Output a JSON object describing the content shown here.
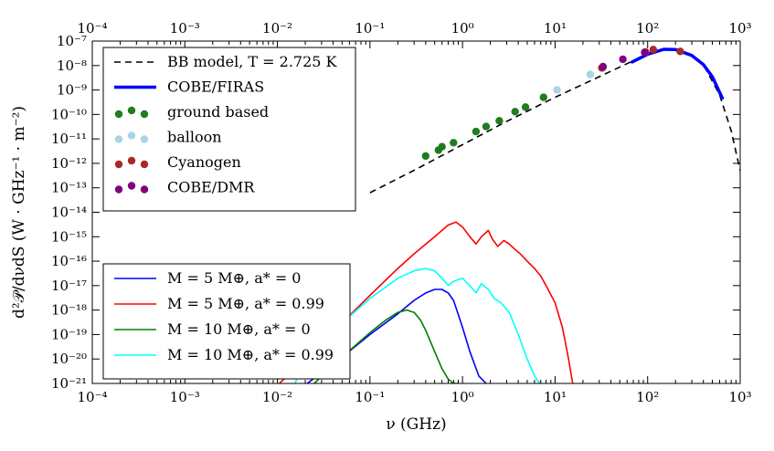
{
  "chart_data": {
    "type": "line",
    "xscale": "log",
    "yscale": "log",
    "xlim": [
      0.0001,
      1000
    ],
    "ylim": [
      1e-21,
      1e-07
    ],
    "xlabel": "ν (GHz)",
    "ylabel": "d²𝒫/dνdS (W · GHz⁻¹ · m⁻²)",
    "x_tick_labels": [
      "10⁻⁴",
      "10⁻³",
      "10⁻²",
      "10⁻¹",
      "10⁰",
      "10¹",
      "10²",
      "10³"
    ],
    "y_tick_labels": [
      "10⁻²¹",
      "10⁻²⁰",
      "10⁻¹⁹",
      "10⁻¹⁸",
      "10⁻¹⁷",
      "10⁻¹⁶",
      "10⁻¹⁵",
      "10⁻¹⁴",
      "10⁻¹³",
      "10⁻¹²",
      "10⁻¹¹",
      "10⁻¹⁰",
      "10⁻⁹",
      "10⁻⁸",
      "10⁻⁷"
    ],
    "legend_upper": {
      "placement": "top-left",
      "entries": [
        {
          "label": "BB model, T = 2.725 K",
          "style": "dashed",
          "color": "#000000"
        },
        {
          "label": "COBE/FIRAS",
          "style": "line",
          "color": "#0000ff"
        },
        {
          "label": "ground based",
          "style": "markers",
          "color": "#1e7d1e"
        },
        {
          "label": "balloon",
          "style": "markers",
          "color": "#a8d4e6"
        },
        {
          "label": "Cyanogen",
          "style": "markers",
          "color": "#a52a2a"
        },
        {
          "label": "COBE/DMR",
          "style": "markers",
          "color": "#800080"
        }
      ]
    },
    "legend_lower": {
      "placement": "bottom-left",
      "entries": [
        {
          "label": "M = 5 M⊕, a* = 0",
          "color": "#0000ff"
        },
        {
          "label": "M = 5 M⊕, a* = 0.99",
          "color": "#ff0000"
        },
        {
          "label": "M = 10 M⊕, a* = 0",
          "color": "#008000"
        },
        {
          "label": "M = 10 M⊕, a* = 0.99",
          "color": "#00ffff"
        }
      ]
    },
    "bb_model": {
      "temperature_K": 2.725,
      "x": [
        0.1,
        0.3,
        1,
        3,
        10,
        30,
        60,
        100,
        160,
        250,
        400,
        600,
        800,
        1000
      ],
      "y": [
        6.3e-14,
        5.2e-13,
        5.8e-12,
        5.2e-11,
        5e-10,
        3.5e-09,
        1.2e-08,
        2.9e-08,
        4.7e-08,
        3.8e-08,
        1.1e-08,
        6.3e-10,
        2.1e-11,
        5e-13
      ]
    },
    "cobe_firas": {
      "x": [
        68,
        100,
        150,
        200,
        300,
        400,
        500,
        640
      ],
      "y": [
        1.4e-08,
        2.9e-08,
        4.6e-08,
        4.5e-08,
        2.6e-08,
        1.1e-08,
        3.5e-09,
        4.7e-10
      ]
    },
    "series_points": [
      {
        "name": "ground based",
        "color": "#1e7d1e",
        "x": [
          0.4,
          0.55,
          0.6,
          0.8,
          1.4,
          1.8,
          2.5,
          3.7,
          4.8,
          7.5
        ],
        "y": [
          2e-12,
          3.5e-12,
          4.8e-12,
          7e-12,
          2e-11,
          3.2e-11,
          5.5e-11,
          1.3e-10,
          2e-10,
          5e-10
        ]
      },
      {
        "name": "balloon",
        "color": "#a8d4e6",
        "x": [
          10.5,
          24,
          33
        ],
        "y": [
          1e-09,
          4.3e-09,
          8e-09
        ]
      },
      {
        "name": "Cyanogen",
        "color": "#a52a2a",
        "x": [
          32,
          95,
          115,
          225
        ],
        "y": [
          8e-09,
          3.5e-08,
          4.5e-08,
          3.8e-08
        ]
      },
      {
        "name": "COBE/DMR",
        "color": "#800080",
        "x": [
          33,
          54,
          93
        ],
        "y": [
          9e-09,
          1.8e-08,
          3.5e-08
        ]
      }
    ],
    "evaporation_spectra": [
      {
        "name": "M = 5 M⊕, a* = 0",
        "color": "#0000ff",
        "x": [
          0.021,
          0.05,
          0.1,
          0.2,
          0.3,
          0.4,
          0.5,
          0.6,
          0.7,
          0.8,
          1.0,
          1.2,
          1.5,
          1.8
        ],
        "y": [
          1e-21,
          1.2e-20,
          1e-19,
          7e-19,
          2.5e-18,
          5e-18,
          7e-18,
          7e-18,
          5e-18,
          2.5e-18,
          2e-19,
          2e-20,
          2e-21,
          1e-21
        ]
      },
      {
        "name": "M = 5 M⊕, a* = 0.99",
        "color": "#ff0000",
        "x": [
          0.0105,
          0.02,
          0.05,
          0.1,
          0.2,
          0.3,
          0.5,
          0.7,
          0.85,
          1.0,
          1.2,
          1.4,
          1.6,
          1.9,
          2.1,
          2.4,
          2.8,
          3.2,
          3.7,
          4.2,
          5,
          6,
          7,
          8,
          10,
          12,
          14,
          15.5
        ],
        "y": [
          1e-21,
          1e-20,
          3e-19,
          4e-18,
          5e-17,
          2e-16,
          1e-15,
          3e-15,
          4e-15,
          2.5e-15,
          1e-15,
          5e-16,
          1e-15,
          1.8e-15,
          8e-16,
          4e-16,
          7e-16,
          5e-16,
          3e-16,
          2e-16,
          1e-16,
          5e-17,
          2.5e-17,
          1e-17,
          2e-18,
          2e-19,
          1e-20,
          1e-21
        ]
      },
      {
        "name": "M = 10 M⊕, a* = 0",
        "color": "#008000",
        "x": [
          0.025,
          0.05,
          0.1,
          0.15,
          0.2,
          0.25,
          0.3,
          0.35,
          0.4,
          0.5,
          0.6,
          0.7,
          0.8,
          0.9
        ],
        "y": [
          1e-21,
          1.2e-20,
          1.2e-19,
          4e-19,
          8e-19,
          1e-18,
          8e-19,
          4e-19,
          1.5e-19,
          2e-20,
          4e-21,
          1.5e-21,
          1e-21,
          1e-21
        ]
      },
      {
        "name": "M = 10 M⊕, a* = 0.99",
        "color": "#00ffff",
        "x": [
          0.0155,
          0.02,
          0.05,
          0.1,
          0.2,
          0.3,
          0.4,
          0.5,
          0.6,
          0.7,
          0.8,
          1.0,
          1.2,
          1.4,
          1.6,
          1.9,
          2.2,
          2.6,
          3.2,
          4,
          5,
          6,
          6.8
        ],
        "y": [
          1e-21,
          1e-20,
          3e-19,
          3e-18,
          2e-17,
          4e-17,
          5e-17,
          4e-17,
          2e-17,
          1e-17,
          1.5e-17,
          2e-17,
          1e-17,
          5e-18,
          1.2e-17,
          7e-18,
          3e-18,
          2e-18,
          8e-19,
          1e-19,
          1e-20,
          2e-21,
          1e-21
        ]
      }
    ]
  }
}
